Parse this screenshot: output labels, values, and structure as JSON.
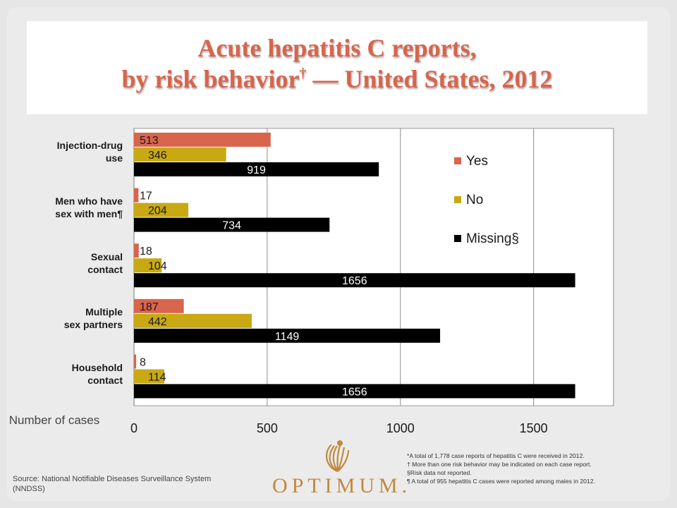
{
  "title_line1": "Acute hepatitis C reports,",
  "title_line2_a": "by risk behavior",
  "title_line2_dagger": "†",
  "title_line2_b": " — United States, 2012",
  "chart_data": {
    "type": "bar",
    "orientation": "horizontal",
    "categories_display": [
      [
        "Injection-drug",
        "use"
      ],
      [
        "Men who have",
        "sex with men¶"
      ],
      [
        "Sexual",
        "contact"
      ],
      [
        "Multiple",
        "sex partners"
      ],
      [
        "Household",
        "contact"
      ]
    ],
    "series": [
      {
        "name": "Yes",
        "color": "#d8654c",
        "values": [
          513,
          17,
          18,
          187,
          8
        ]
      },
      {
        "name": "No",
        "color": "#c8a914",
        "values": [
          346,
          204,
          104,
          442,
          114
        ]
      },
      {
        "name": "Missing§",
        "color": "#000000",
        "values": [
          919,
          734,
          1656,
          1149,
          1656
        ]
      }
    ],
    "xlim": [
      0,
      1800
    ],
    "xticks": [
      0,
      500,
      1000,
      1500
    ],
    "xlabel": "Number of cases",
    "grid": true,
    "legend_position": "right"
  },
  "source": "Source: National Notifiable Diseases Surveillance System (NNDSS)",
  "footnotes": [
    "*A total of 1,778 case reports of hepatitis C were received in 2012.",
    "† More than one risk behavior may be indicated on each case report.",
    "§Risk data not reported.",
    "¶ A total of 955 hepatitis C cases were reported among males in 2012."
  ],
  "logo": "OPTIMUM.",
  "logo_icon": "optimum-sunburst-icon",
  "colors": {
    "title": "#d8654c",
    "logo": "#c08a3e"
  }
}
